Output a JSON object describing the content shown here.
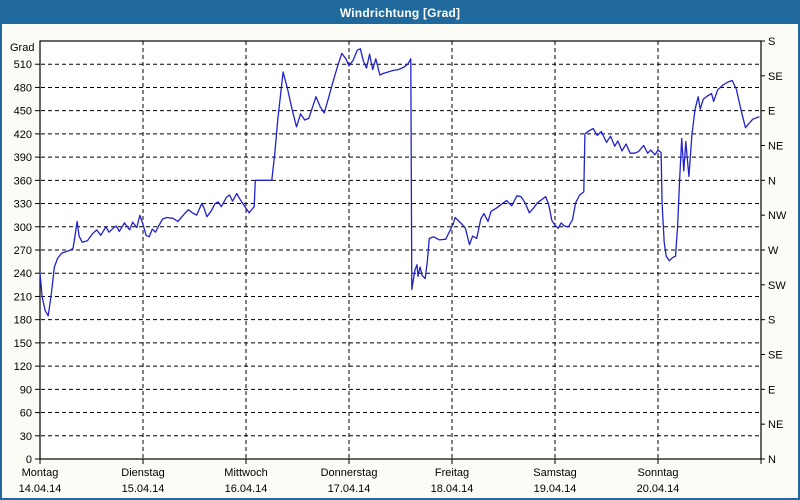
{
  "window": {
    "title": "Windrichtung [Grad]"
  },
  "colors": {
    "titlebar": "#1f699c",
    "window_border": "#1f699c",
    "background": "#fcfcf6",
    "plot_background": "#ffffff",
    "grid": "#000000",
    "axis": "#000000",
    "line": "#2222cc",
    "title_text": "#ffffff"
  },
  "chart_data": {
    "type": "line",
    "title": "Windrichtung [Grad]",
    "ylim": [
      0,
      540
    ],
    "grid": {
      "horizontal_step": 30,
      "vertical": "day-boundaries",
      "style": "dashed"
    },
    "legend": "none",
    "y_axis_left": {
      "label": "Grad",
      "min": 0,
      "max": 540,
      "tick_step": 30,
      "ticks": [
        0,
        30,
        60,
        90,
        120,
        150,
        180,
        210,
        240,
        270,
        300,
        330,
        360,
        390,
        420,
        450,
        480,
        510
      ]
    },
    "y_axis_right": {
      "ticks": [
        {
          "value": 540,
          "label": "S"
        },
        {
          "value": 495,
          "label": "SE"
        },
        {
          "value": 450,
          "label": "E"
        },
        {
          "value": 405,
          "label": "NE"
        },
        {
          "value": 360,
          "label": "N"
        },
        {
          "value": 315,
          "label": "NW"
        },
        {
          "value": 270,
          "label": "W"
        },
        {
          "value": 225,
          "label": "SW"
        },
        {
          "value": 180,
          "label": "S"
        },
        {
          "value": 135,
          "label": "SE"
        },
        {
          "value": 90,
          "label": "E"
        },
        {
          "value": 45,
          "label": "NE"
        },
        {
          "value": 0,
          "label": "N"
        }
      ]
    },
    "x_axis": {
      "unit": "days",
      "range_days": [
        0,
        7
      ],
      "days": [
        {
          "weekday": "Montag",
          "date": "14.04.14"
        },
        {
          "weekday": "Dienstag",
          "date": "15.04.14"
        },
        {
          "weekday": "Mittwoch",
          "date": "16.04.14"
        },
        {
          "weekday": "Donnerstag",
          "date": "17.04.14"
        },
        {
          "weekday": "Freitag",
          "date": "18.04.14"
        },
        {
          "weekday": "Samstag",
          "date": "19.04.14"
        },
        {
          "weekday": "Sonntag",
          "date": "20.04.14"
        }
      ]
    },
    "series": [
      {
        "name": "Windrichtung",
        "color": "#2222cc",
        "points": [
          [
            0,
            240
          ],
          [
            0.02,
            210
          ],
          [
            0.05,
            192
          ],
          [
            0.08,
            185
          ],
          [
            0.11,
            213
          ],
          [
            0.14,
            248
          ],
          [
            0.17,
            259
          ],
          [
            0.21,
            266
          ],
          [
            0.28,
            269
          ],
          [
            0.32,
            272
          ],
          [
            0.34,
            288
          ],
          [
            0.36,
            307
          ],
          [
            0.38,
            288
          ],
          [
            0.41,
            280
          ],
          [
            0.46,
            282
          ],
          [
            0.51,
            291
          ],
          [
            0.55,
            296
          ],
          [
            0.59,
            289
          ],
          [
            0.64,
            300
          ],
          [
            0.67,
            293
          ],
          [
            0.71,
            298
          ],
          [
            0.74,
            301
          ],
          [
            0.77,
            294
          ],
          [
            0.82,
            305
          ],
          [
            0.87,
            296
          ],
          [
            0.9,
            306
          ],
          [
            0.94,
            299
          ],
          [
            0.97,
            315
          ],
          [
            1,
            303
          ],
          [
            1.03,
            289
          ],
          [
            1.06,
            287
          ],
          [
            1.09,
            297
          ],
          [
            1.12,
            293
          ],
          [
            1.16,
            303
          ],
          [
            1.19,
            310
          ],
          [
            1.23,
            312
          ],
          [
            1.29,
            311
          ],
          [
            1.34,
            307
          ],
          [
            1.39,
            315
          ],
          [
            1.44,
            322
          ],
          [
            1.48,
            318
          ],
          [
            1.52,
            315
          ],
          [
            1.57,
            330
          ],
          [
            1.59,
            325
          ],
          [
            1.62,
            313
          ],
          [
            1.66,
            320
          ],
          [
            1.7,
            330
          ],
          [
            1.73,
            332
          ],
          [
            1.76,
            326
          ],
          [
            1.81,
            338
          ],
          [
            1.84,
            341
          ],
          [
            1.87,
            333
          ],
          [
            1.91,
            343
          ],
          [
            1.94,
            336
          ],
          [
            1.97,
            330
          ],
          [
            2,
            324
          ],
          [
            2.03,
            318
          ],
          [
            2.06,
            323
          ],
          [
            2.08,
            326
          ],
          [
            2.09,
            360
          ],
          [
            2.25,
            360
          ],
          [
            2.28,
            395
          ],
          [
            2.31,
            440
          ],
          [
            2.36,
            500
          ],
          [
            2.4,
            480
          ],
          [
            2.45,
            450
          ],
          [
            2.49,
            429
          ],
          [
            2.53,
            446
          ],
          [
            2.57,
            438
          ],
          [
            2.61,
            440
          ],
          [
            2.64,
            452
          ],
          [
            2.68,
            468
          ],
          [
            2.72,
            455
          ],
          [
            2.76,
            447
          ],
          [
            2.8,
            466
          ],
          [
            2.85,
            490
          ],
          [
            2.89,
            508
          ],
          [
            2.93,
            524
          ],
          [
            2.97,
            517
          ],
          [
            3,
            508
          ],
          [
            3.04,
            515
          ],
          [
            3.08,
            528
          ],
          [
            3.11,
            530
          ],
          [
            3.14,
            514
          ],
          [
            3.17,
            505
          ],
          [
            3.2,
            523
          ],
          [
            3.23,
            503
          ],
          [
            3.26,
            517
          ],
          [
            3.3,
            496
          ],
          [
            3.33,
            498
          ],
          [
            3.38,
            500
          ],
          [
            3.43,
            502
          ],
          [
            3.48,
            503
          ],
          [
            3.53,
            506
          ],
          [
            3.57,
            510
          ],
          [
            3.6,
            517
          ],
          [
            3.61,
            219
          ],
          [
            3.64,
            244
          ],
          [
            3.66,
            251
          ],
          [
            3.67,
            236
          ],
          [
            3.69,
            248
          ],
          [
            3.71,
            237
          ],
          [
            3.74,
            233
          ],
          [
            3.76,
            255
          ],
          [
            3.78,
            285
          ],
          [
            3.82,
            287
          ],
          [
            3.88,
            283
          ],
          [
            3.94,
            284
          ],
          [
            3.98,
            295
          ],
          [
            4.01,
            303
          ],
          [
            4.03,
            312
          ],
          [
            4.06,
            308
          ],
          [
            4.1,
            303
          ],
          [
            4.13,
            298
          ],
          [
            4.17,
            277
          ],
          [
            4.2,
            288
          ],
          [
            4.24,
            285
          ],
          [
            4.28,
            310
          ],
          [
            4.31,
            317
          ],
          [
            4.35,
            307
          ],
          [
            4.38,
            320
          ],
          [
            4.43,
            324
          ],
          [
            4.48,
            329
          ],
          [
            4.53,
            334
          ],
          [
            4.58,
            327
          ],
          [
            4.63,
            340
          ],
          [
            4.67,
            339
          ],
          [
            4.71,
            331
          ],
          [
            4.75,
            318
          ],
          [
            4.79,
            324
          ],
          [
            4.83,
            331
          ],
          [
            4.87,
            335
          ],
          [
            4.91,
            339
          ],
          [
            4.94,
            328
          ],
          [
            4.97,
            308
          ],
          [
            5,
            302
          ],
          [
            5.03,
            298
          ],
          [
            5.06,
            305
          ],
          [
            5.09,
            301
          ],
          [
            5.13,
            300
          ],
          [
            5.17,
            309
          ],
          [
            5.2,
            331
          ],
          [
            5.24,
            341
          ],
          [
            5.28,
            345
          ],
          [
            5.29,
            420
          ],
          [
            5.33,
            424
          ],
          [
            5.37,
            427
          ],
          [
            5.41,
            418
          ],
          [
            5.45,
            423
          ],
          [
            5.5,
            409
          ],
          [
            5.54,
            417
          ],
          [
            5.58,
            404
          ],
          [
            5.61,
            411
          ],
          [
            5.65,
            398
          ],
          [
            5.69,
            407
          ],
          [
            5.73,
            395
          ],
          [
            5.77,
            395
          ],
          [
            5.81,
            397
          ],
          [
            5.86,
            405
          ],
          [
            5.9,
            395
          ],
          [
            5.93,
            399
          ],
          [
            5.97,
            393
          ],
          [
            6,
            399
          ],
          [
            6.03,
            396
          ],
          [
            6.04,
            330
          ],
          [
            6.06,
            280
          ],
          [
            6.08,
            262
          ],
          [
            6.11,
            256
          ],
          [
            6.14,
            260
          ],
          [
            6.17,
            262
          ],
          [
            6.19,
            300
          ],
          [
            6.21,
            360
          ],
          [
            6.23,
            414
          ],
          [
            6.25,
            372
          ],
          [
            6.27,
            410
          ],
          [
            6.3,
            365
          ],
          [
            6.33,
            420
          ],
          [
            6.36,
            452
          ],
          [
            6.39,
            468
          ],
          [
            6.41,
            452
          ],
          [
            6.44,
            465
          ],
          [
            6.48,
            469
          ],
          [
            6.52,
            472
          ],
          [
            6.54,
            462
          ],
          [
            6.58,
            477
          ],
          [
            6.63,
            483
          ],
          [
            6.68,
            487
          ],
          [
            6.72,
            489
          ],
          [
            6.76,
            478
          ],
          [
            6.79,
            460
          ],
          [
            6.82,
            443
          ],
          [
            6.85,
            428
          ],
          [
            6.88,
            433
          ],
          [
            6.92,
            439
          ],
          [
            6.96,
            441
          ],
          [
            6.98,
            442
          ]
        ]
      }
    ]
  }
}
